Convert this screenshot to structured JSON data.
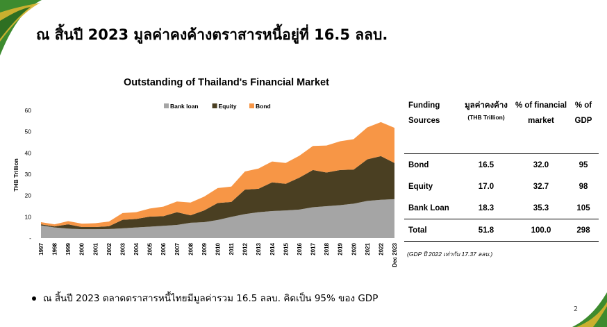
{
  "slide": {
    "title": "ณ สิ้นปี 2023 มูลค่าคงค้างตราสารหนี้อยู่ที่ 16.5 ลลบ.",
    "page_number": "2",
    "bullet": "ณ สิ้นปี 2023 ตลาดตราสารหนี้ไทยมีมูลค่ารวม 16.5 ลลบ. คิดเป็น 95% ของ GDP",
    "colors": {
      "accent_green": "#3d8b2f",
      "accent_gold": "#d8b430"
    }
  },
  "chart_data": {
    "type": "area",
    "title": "Outstanding of Thailand's Financial Market",
    "ylabel": "THB Trillion",
    "xlabel": "",
    "ylim": [
      0,
      60
    ],
    "yticks": [
      "-",
      "10",
      "20",
      "30",
      "40",
      "50",
      "60"
    ],
    "stacked": true,
    "legend_position": "top",
    "categories": [
      "1997",
      "1998",
      "1999",
      "2000",
      "2001",
      "2002",
      "2003",
      "2004",
      "2005",
      "2006",
      "2007",
      "2008",
      "2009",
      "2010",
      "2011",
      "2012",
      "2013",
      "2014",
      "2015",
      "2016",
      "2017",
      "2018",
      "2019",
      "2020",
      "2021",
      "2022",
      "Dec 2023"
    ],
    "series": [
      {
        "name": "Bank loan",
        "color": "#a5a5a5",
        "values": [
          6,
          5,
          4.5,
          4.2,
          4.2,
          4.3,
          4.6,
          5,
          5.4,
          5.8,
          6.2,
          7.2,
          7.5,
          8.5,
          10,
          11.3,
          12.2,
          12.7,
          13,
          13.4,
          14.5,
          15,
          15.5,
          16.2,
          17.5,
          18,
          18.3
        ]
      },
      {
        "name": "Equity",
        "color": "#4a3f22",
        "values": [
          0.5,
          0.5,
          2,
          1,
          1,
          1.3,
          4,
          4,
          4.7,
          4.5,
          6,
          3.5,
          5.5,
          8,
          7,
          11.5,
          11,
          13.5,
          12.5,
          15,
          17.5,
          15.8,
          16.5,
          16,
          19.5,
          20.5,
          17
        ]
      },
      {
        "name": "Bond",
        "color": "#f79646",
        "values": [
          1,
          1,
          1.5,
          1.6,
          1.8,
          2.2,
          3.2,
          3.2,
          3.8,
          4.5,
          5,
          6,
          6.5,
          7,
          7.2,
          8.5,
          9.5,
          9.8,
          9.8,
          10.3,
          11.3,
          12.7,
          13.5,
          14.3,
          15,
          16,
          16.5
        ]
      }
    ]
  },
  "table": {
    "headers": [
      {
        "main": "Funding Sources",
        "sub": ""
      },
      {
        "main": "มูลค่าคงค้าง",
        "sub": "(THB Trillion)"
      },
      {
        "main": "% of financial market",
        "sub": ""
      },
      {
        "main": "% of GDP",
        "sub": ""
      }
    ],
    "rows": [
      [
        "Bond",
        "16.5",
        "32.0",
        "95"
      ],
      [
        "Equity",
        "17.0",
        "32.7",
        "98"
      ],
      [
        "Bank Loan",
        "18.3",
        "35.3",
        "105"
      ]
    ],
    "total": [
      "Total",
      "51.8",
      "100.0",
      "298"
    ],
    "note": "(GDP ปี 2022 เท่ากับ 17.37 ลลบ.)"
  }
}
